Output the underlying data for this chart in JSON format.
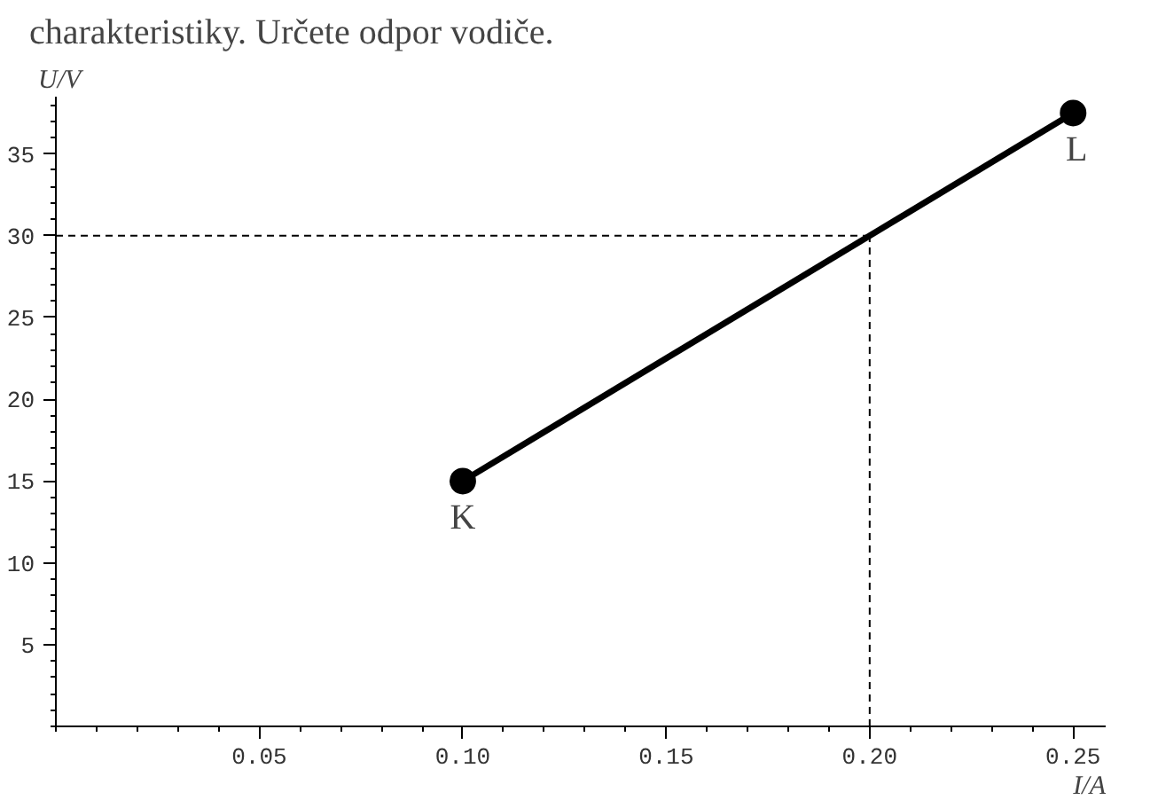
{
  "chart_data": {
    "type": "line",
    "title": "charakteristiky. Určete odpor vodiče.",
    "xlabel": "I/A",
    "ylabel": "U/V",
    "x": [
      0.1,
      0.25
    ],
    "series": [
      {
        "color": "#000000",
        "values": [
          15,
          37.5
        ]
      }
    ],
    "marker": "circle",
    "line_style": "solid",
    "grid": false,
    "xlim": [
      0,
      0.258
    ],
    "ylim": [
      0,
      38.5
    ],
    "xticks": [
      0.05,
      {
        "value": 0.1,
        "label": "0.10"
      },
      0.15,
      {
        "value": 0.2,
        "label": "0.20"
      },
      0.25
    ],
    "yticks": [
      5,
      10,
      15,
      20,
      25,
      30,
      35
    ],
    "ref_lines": [
      {
        "axis": "y",
        "value": 30,
        "line_style": "dashed",
        "color": "#000000"
      },
      {
        "axis": "x",
        "value": 0.2,
        "line_style": "dashed",
        "color": "#000000"
      }
    ],
    "annotations": [
      {
        "text": "K",
        "x": 0.1,
        "y": 15
      },
      {
        "text": "L",
        "x": 0.25,
        "y": 37.5
      }
    ]
  }
}
